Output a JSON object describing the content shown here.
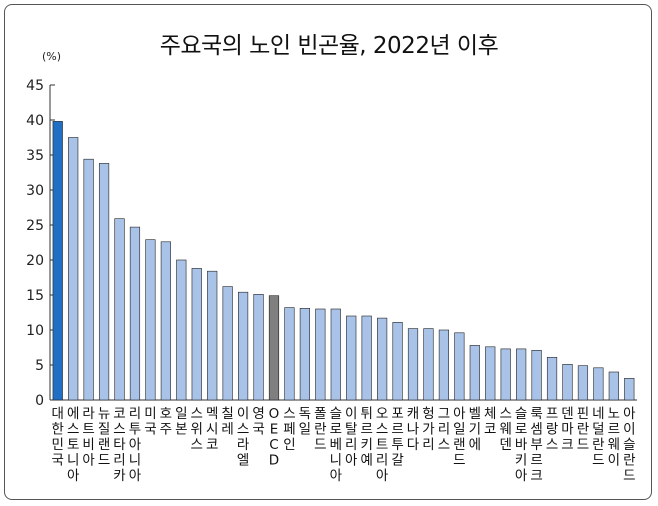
{
  "title": "주요국의 노인 빈곤율, 2022년 이후",
  "unit_label": "(%)",
  "colors": {
    "default_bar": "#a9c3e8",
    "highlight_korea": "#1f6fc5",
    "highlight_oecd": "#7f7f7f",
    "bar_outline": "#222222"
  },
  "chart_data": {
    "type": "bar",
    "title": "주요국의 노인 빈곤율, 2022년 이후",
    "ylabel": "(%)",
    "ylim": [
      0,
      45
    ],
    "yticks": [
      0,
      5,
      10,
      15,
      20,
      25,
      30,
      35,
      40,
      45
    ],
    "grid": false,
    "categories": [
      "대한민국",
      "에스토니아",
      "라트비아",
      "뉴질랜드",
      "코스타리카",
      "리투아니아",
      "미국",
      "호주",
      "일본",
      "스위스",
      "멕시코",
      "칠레",
      "이스라엘",
      "영국",
      "OECD",
      "스페인",
      "독일",
      "폴란드",
      "슬로베니아",
      "이탈리아",
      "튀르키예",
      "오스트리아",
      "포르투갈",
      "캐나다",
      "헝가리",
      "그리스",
      "아일랜드",
      "벨기에",
      "체코",
      "스웨덴",
      "슬로바키아",
      "룩셈부르크",
      "프랑스",
      "덴마크",
      "핀란드",
      "네덜란드",
      "노르웨이",
      "아이슬란드"
    ],
    "values": [
      39.8,
      37.5,
      34.4,
      33.8,
      25.9,
      24.7,
      22.9,
      22.6,
      20.0,
      18.8,
      18.4,
      16.2,
      15.4,
      15.1,
      14.9,
      13.2,
      13.1,
      13.0,
      13.0,
      12.0,
      12.0,
      11.7,
      11.1,
      10.2,
      10.2,
      10.0,
      9.6,
      7.8,
      7.6,
      7.3,
      7.3,
      7.1,
      6.1,
      5.1,
      4.9,
      4.6,
      4.0,
      3.1
    ],
    "highlight": {
      "대한민국": "highlight_korea",
      "OECD": "highlight_oecd"
    }
  }
}
